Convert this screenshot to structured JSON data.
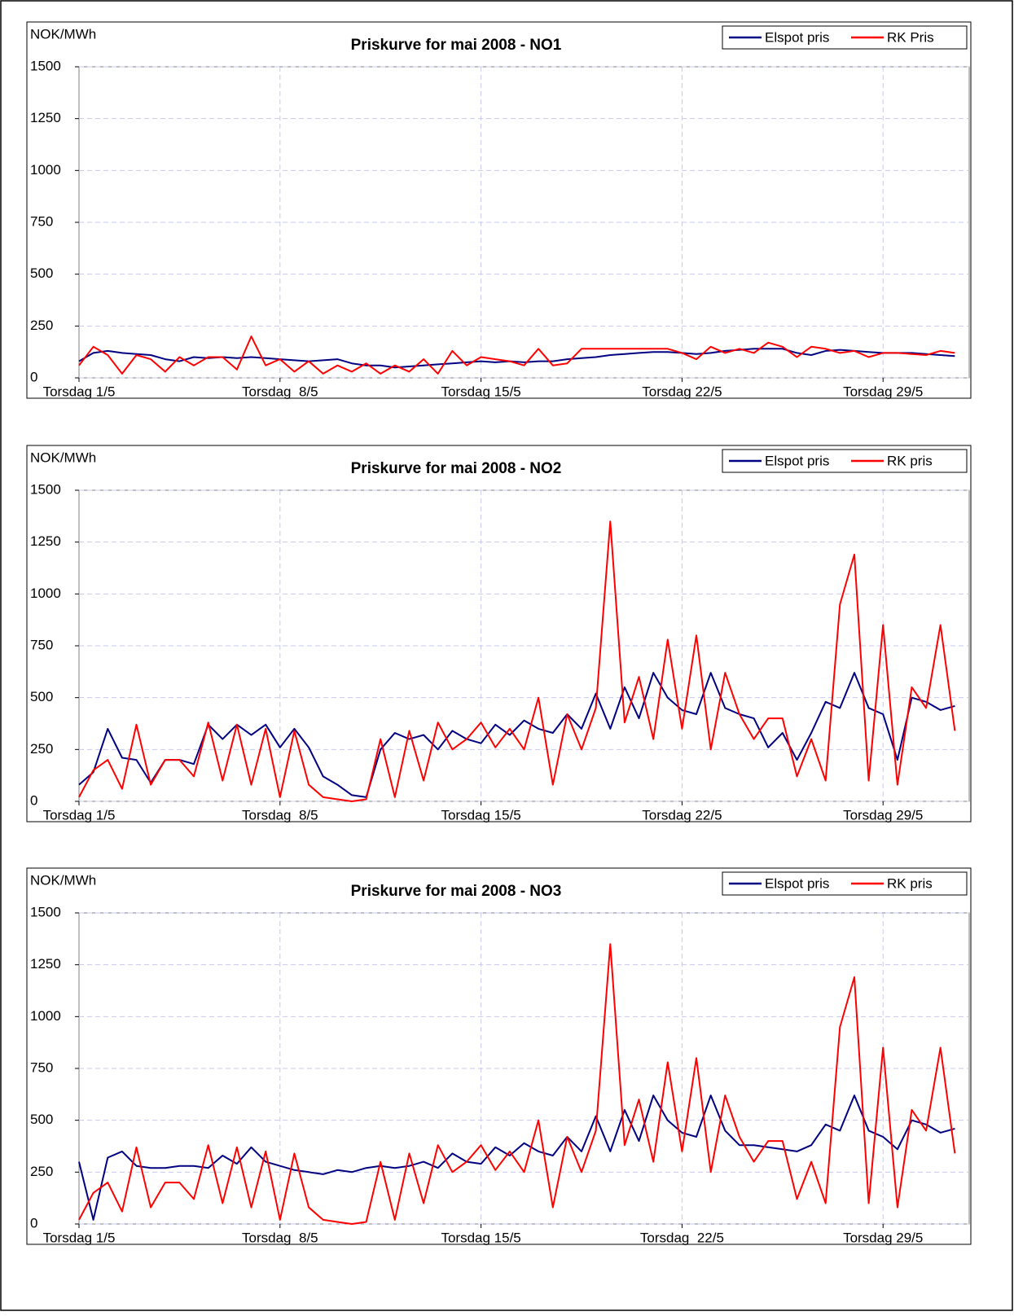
{
  "chart_data": [
    {
      "type": "line",
      "title": "Priskurve for mai 2008 - NO1",
      "y_label": "NOK/MWh",
      "x": [
        1,
        1.5,
        2,
        2.5,
        3,
        3.5,
        4,
        4.5,
        5,
        5.5,
        6,
        6.5,
        7,
        7.5,
        8,
        8.5,
        9,
        9.5,
        10,
        10.5,
        11,
        11.5,
        12,
        12.5,
        13,
        13.5,
        14,
        14.5,
        15,
        15.5,
        16,
        16.5,
        17,
        17.5,
        18,
        18.5,
        19,
        19.5,
        20,
        20.5,
        21,
        21.5,
        22,
        22.5,
        23,
        23.5,
        24,
        24.5,
        25,
        25.5,
        26,
        26.5,
        27,
        27.5,
        28,
        28.5,
        29,
        29.5,
        30,
        30.5,
        31,
        31.5
      ],
      "series": [
        {
          "name": "Elspot pris",
          "color": "#000080",
          "values": [
            80,
            120,
            130,
            120,
            115,
            110,
            90,
            80,
            100,
            95,
            100,
            95,
            100,
            95,
            90,
            85,
            80,
            85,
            90,
            70,
            60,
            60,
            50,
            55,
            60,
            65,
            70,
            75,
            80,
            75,
            80,
            75,
            80,
            80,
            90,
            95,
            100,
            110,
            115,
            120,
            125,
            125,
            120,
            115,
            120,
            130,
            135,
            140,
            140,
            140,
            120,
            110,
            130,
            135,
            130,
            125,
            120,
            120,
            120,
            115,
            110,
            105
          ]
        },
        {
          "name": "RK Pris",
          "color": "#ff0000",
          "values": [
            60,
            150,
            110,
            20,
            110,
            90,
            30,
            100,
            60,
            100,
            100,
            40,
            200,
            60,
            90,
            30,
            80,
            20,
            60,
            30,
            70,
            20,
            60,
            30,
            90,
            20,
            130,
            60,
            100,
            90,
            80,
            60,
            140,
            60,
            70,
            140,
            140,
            140,
            140,
            140,
            140,
            140,
            120,
            90,
            150,
            120,
            140,
            120,
            170,
            150,
            100,
            150,
            140,
            120,
            130,
            100,
            120,
            120,
            115,
            110,
            130,
            120
          ]
        }
      ],
      "xlim": [
        1,
        32
      ],
      "xticks": [
        {
          "value": 1,
          "label": "Torsdag 1/5"
        },
        {
          "value": 8,
          "label": "Torsdag  8/5"
        },
        {
          "value": 15,
          "label": "Torsdag 15/5"
        },
        {
          "value": 22,
          "label": "Torsdag 22/5"
        },
        {
          "value": 29,
          "label": "Torsdag 29/5"
        }
      ],
      "ylim": [
        0,
        1500
      ],
      "yticks": [
        0,
        250,
        500,
        750,
        1000,
        1250,
        1500
      ],
      "grid": true,
      "legend": "top-right"
    },
    {
      "type": "line",
      "title": "Priskurve for mai 2008 - NO2",
      "y_label": "NOK/MWh",
      "x": [
        1,
        1.5,
        2,
        2.5,
        3,
        3.5,
        4,
        4.5,
        5,
        5.5,
        6,
        6.5,
        7,
        7.5,
        8,
        8.5,
        9,
        9.5,
        10,
        10.5,
        11,
        11.5,
        12,
        12.5,
        13,
        13.5,
        14,
        14.5,
        15,
        15.5,
        16,
        16.5,
        17,
        17.5,
        18,
        18.5,
        19,
        19.5,
        20,
        20.5,
        21,
        21.5,
        22,
        22.5,
        23,
        23.5,
        24,
        24.5,
        25,
        25.5,
        26,
        26.5,
        27,
        27.5,
        28,
        28.5,
        29,
        29.5,
        30,
        30.5,
        31,
        31.5
      ],
      "series": [
        {
          "name": "Elspot pris",
          "color": "#000080",
          "values": [
            80,
            140,
            350,
            210,
            200,
            90,
            200,
            200,
            180,
            370,
            300,
            370,
            320,
            370,
            260,
            350,
            260,
            120,
            80,
            30,
            20,
            250,
            330,
            300,
            320,
            250,
            340,
            300,
            280,
            370,
            320,
            390,
            350,
            330,
            420,
            350,
            520,
            350,
            550,
            400,
            620,
            500,
            440,
            420,
            620,
            450,
            420,
            400,
            260,
            330,
            200,
            330,
            480,
            450,
            620,
            450,
            420,
            200,
            500,
            480,
            440,
            460
          ]
        },
        {
          "name": "RK pris",
          "color": "#ff0000",
          "values": [
            20,
            150,
            200,
            60,
            370,
            80,
            200,
            200,
            120,
            380,
            100,
            370,
            80,
            350,
            20,
            340,
            80,
            20,
            10,
            0,
            10,
            300,
            20,
            340,
            100,
            380,
            250,
            300,
            380,
            260,
            350,
            250,
            500,
            80,
            420,
            250,
            450,
            1350,
            380,
            600,
            300,
            780,
            350,
            800,
            250,
            620,
            420,
            300,
            400,
            400,
            120,
            300,
            100,
            950,
            1190,
            100,
            850,
            80,
            550,
            450,
            850,
            340
          ]
        }
      ],
      "xlim": [
        1,
        32
      ],
      "xticks": [
        {
          "value": 1,
          "label": "Torsdag 1/5"
        },
        {
          "value": 8,
          "label": "Torsdag  8/5"
        },
        {
          "value": 15,
          "label": "Torsdag 15/5"
        },
        {
          "value": 22,
          "label": "Torsdag 22/5"
        },
        {
          "value": 29,
          "label": "Torsdag 29/5"
        }
      ],
      "ylim": [
        0,
        1500
      ],
      "yticks": [
        0,
        250,
        500,
        750,
        1000,
        1250,
        1500
      ],
      "grid": true,
      "legend": "top-right"
    },
    {
      "type": "line",
      "title": "Priskurve for mai 2008 - NO3",
      "y_label": "NOK/MWh",
      "x": [
        1,
        1.5,
        2,
        2.5,
        3,
        3.5,
        4,
        4.5,
        5,
        5.5,
        6,
        6.5,
        7,
        7.5,
        8,
        8.5,
        9,
        9.5,
        10,
        10.5,
        11,
        11.5,
        12,
        12.5,
        13,
        13.5,
        14,
        14.5,
        15,
        15.5,
        16,
        16.5,
        17,
        17.5,
        18,
        18.5,
        19,
        19.5,
        20,
        20.5,
        21,
        21.5,
        22,
        22.5,
        23,
        23.5,
        24,
        24.5,
        25,
        25.5,
        26,
        26.5,
        27,
        27.5,
        28,
        28.5,
        29,
        29.5,
        30,
        30.5,
        31,
        31.5
      ],
      "series": [
        {
          "name": "Elspot pris",
          "color": "#000080",
          "values": [
            300,
            20,
            320,
            350,
            280,
            270,
            270,
            280,
            280,
            270,
            330,
            290,
            370,
            300,
            280,
            260,
            250,
            240,
            260,
            250,
            270,
            280,
            270,
            280,
            300,
            270,
            340,
            300,
            290,
            370,
            330,
            390,
            350,
            330,
            420,
            350,
            520,
            350,
            550,
            400,
            620,
            500,
            440,
            420,
            620,
            450,
            380,
            380,
            370,
            360,
            350,
            380,
            480,
            450,
            620,
            450,
            420,
            360,
            500,
            480,
            440,
            460
          ]
        },
        {
          "name": "RK pris",
          "color": "#ff0000",
          "values": [
            20,
            150,
            200,
            60,
            370,
            80,
            200,
            200,
            120,
            380,
            100,
            370,
            80,
            350,
            20,
            340,
            80,
            20,
            10,
            0,
            10,
            300,
            20,
            340,
            100,
            380,
            250,
            300,
            380,
            260,
            350,
            250,
            500,
            80,
            420,
            250,
            450,
            1350,
            380,
            600,
            300,
            780,
            350,
            800,
            250,
            620,
            420,
            300,
            400,
            400,
            120,
            300,
            100,
            950,
            1190,
            100,
            850,
            80,
            550,
            450,
            850,
            340
          ]
        }
      ],
      "xlim": [
        1,
        32
      ],
      "xticks": [
        {
          "value": 1,
          "label": "Torsdag 1/5"
        },
        {
          "value": 8,
          "label": "Torsdag  8/5"
        },
        {
          "value": 15,
          "label": "Torsdag 15/5"
        },
        {
          "value": 22,
          "label": "Torsdag  22/5"
        },
        {
          "value": 29,
          "label": "Torsdag 29/5"
        }
      ],
      "ylim": [
        0,
        1500
      ],
      "yticks": [
        0,
        250,
        500,
        750,
        1000,
        1250,
        1500
      ],
      "grid": true,
      "legend": "top-right"
    }
  ]
}
